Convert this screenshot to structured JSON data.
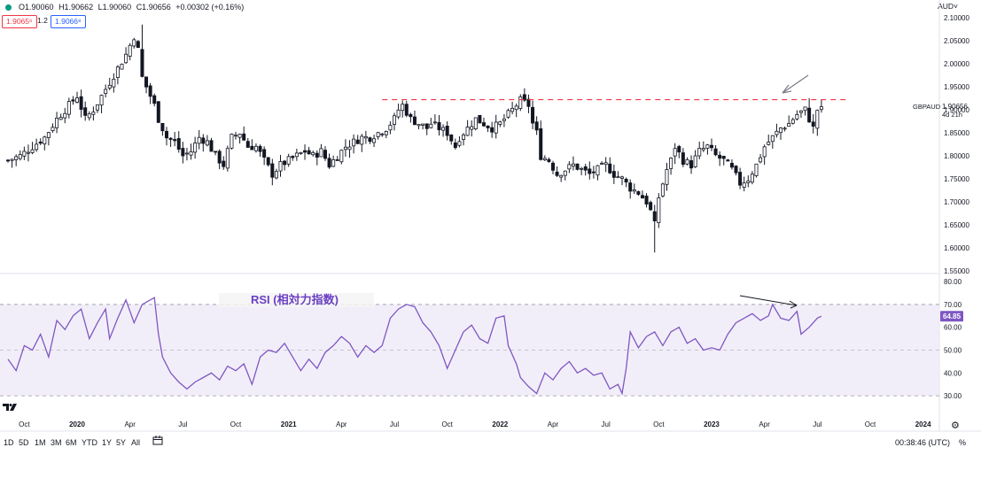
{
  "header": {
    "open": "O1.90060",
    "high": "H1.90662",
    "low": "L1.90060",
    "close": "C1.90656",
    "change": "+0.00302 (+0.16%)",
    "bid": "1.9065⁶",
    "spread": "1.2",
    "ask": "1.9066⁸",
    "currency": "AUD˅"
  },
  "toolbar": {
    "timeframes": [
      "1D",
      "5D",
      "1M",
      "3M",
      "6M",
      "YTD",
      "1Y",
      "5Y",
      "All"
    ],
    "calendar_icon": "calendar-range-icon",
    "clock": "00:38:46 (UTC)",
    "percent": "%",
    "settings_icon": "gear-icon"
  },
  "rsi_label": "RSI (相対力指数)",
  "logo_text": "TV",
  "chart_data": [
    {
      "type": "candlestick",
      "symbol": "GBPAUD",
      "interval": "weekly",
      "last_price": "1.90656",
      "countdown": "4d 21h",
      "ylim": [
        1.55,
        2.1
      ],
      "yticks": [
        "2.10000",
        "2.05000",
        "2.00000",
        "1.95000",
        "1.90000",
        "1.85000",
        "1.80000",
        "1.75000",
        "1.70000",
        "1.65000",
        "1.60000",
        "1.55000"
      ],
      "ytick_values": [
        2.1,
        2.05,
        2.0,
        1.95,
        1.9,
        1.85,
        1.8,
        1.75,
        1.7,
        1.65,
        1.6,
        1.55
      ],
      "xticks": [
        "Oct",
        "2020",
        "Apr",
        "Jul",
        "Oct",
        "2021",
        "Apr",
        "Jul",
        "Oct",
        "2022",
        "Apr",
        "Jul",
        "Oct",
        "2023",
        "Apr",
        "Jul",
        "Oct",
        "2024"
      ],
      "xtick_weeks": [
        4,
        17,
        30,
        43,
        56,
        69,
        82,
        95,
        108,
        121,
        134,
        147,
        160,
        173,
        186,
        199,
        212,
        225
      ],
      "close_path": [
        [
          0,
          1.79
        ],
        [
          3,
          1.8
        ],
        [
          6,
          1.82
        ],
        [
          9,
          1.84
        ],
        [
          12,
          1.88
        ],
        [
          15,
          1.91
        ],
        [
          17,
          1.93
        ],
        [
          19,
          1.88
        ],
        [
          21,
          1.9
        ],
        [
          23,
          1.93
        ],
        [
          25,
          1.96
        ],
        [
          27,
          1.99
        ],
        [
          29,
          2.02
        ],
        [
          31,
          2.06
        ],
        [
          32,
          2.03
        ],
        [
          33,
          1.97
        ],
        [
          34,
          1.95
        ],
        [
          35,
          1.93
        ],
        [
          36,
          1.91
        ],
        [
          37,
          1.88
        ],
        [
          38,
          1.86
        ],
        [
          39,
          1.84
        ],
        [
          41,
          1.83
        ],
        [
          43,
          1.8
        ],
        [
          45,
          1.81
        ],
        [
          47,
          1.84
        ],
        [
          49,
          1.83
        ],
        [
          51,
          1.8
        ],
        [
          53,
          1.78
        ],
        [
          55,
          1.84
        ],
        [
          57,
          1.85
        ],
        [
          59,
          1.82
        ],
        [
          61,
          1.82
        ],
        [
          63,
          1.79
        ],
        [
          65,
          1.76
        ],
        [
          67,
          1.78
        ],
        [
          69,
          1.79
        ],
        [
          71,
          1.8
        ],
        [
          73,
          1.81
        ],
        [
          75,
          1.8
        ],
        [
          77,
          1.81
        ],
        [
          79,
          1.78
        ],
        [
          81,
          1.8
        ],
        [
          83,
          1.82
        ],
        [
          85,
          1.83
        ],
        [
          87,
          1.84
        ],
        [
          89,
          1.84
        ],
        [
          91,
          1.85
        ],
        [
          93,
          1.86
        ],
        [
          95,
          1.88
        ],
        [
          96,
          1.9
        ],
        [
          97,
          1.91
        ],
        [
          99,
          1.88
        ],
        [
          101,
          1.87
        ],
        [
          103,
          1.86
        ],
        [
          104,
          1.87
        ],
        [
          106,
          1.86
        ],
        [
          108,
          1.85
        ],
        [
          110,
          1.82
        ],
        [
          111,
          1.84
        ],
        [
          113,
          1.86
        ],
        [
          115,
          1.88
        ],
        [
          117,
          1.87
        ],
        [
          119,
          1.86
        ],
        [
          121,
          1.87
        ],
        [
          123,
          1.89
        ],
        [
          125,
          1.91
        ],
        [
          126,
          1.92
        ],
        [
          128,
          1.91
        ],
        [
          129,
          1.87
        ],
        [
          130,
          1.85
        ],
        [
          131,
          1.8
        ],
        [
          133,
          1.79
        ],
        [
          135,
          1.76
        ],
        [
          137,
          1.77
        ],
        [
          139,
          1.78
        ],
        [
          141,
          1.77
        ],
        [
          143,
          1.76
        ],
        [
          145,
          1.77
        ],
        [
          147,
          1.78
        ],
        [
          149,
          1.76
        ],
        [
          151,
          1.75
        ],
        [
          153,
          1.73
        ],
        [
          155,
          1.72
        ],
        [
          157,
          1.7
        ],
        [
          158,
          1.68
        ],
        [
          159,
          1.65
        ],
        [
          160,
          1.71
        ],
        [
          162,
          1.77
        ],
        [
          163,
          1.79
        ],
        [
          164,
          1.82
        ],
        [
          166,
          1.79
        ],
        [
          168,
          1.78
        ],
        [
          170,
          1.81
        ],
        [
          172,
          1.82
        ],
        [
          174,
          1.8
        ],
        [
          176,
          1.79
        ],
        [
          178,
          1.77
        ],
        [
          180,
          1.74
        ],
        [
          182,
          1.75
        ],
        [
          184,
          1.78
        ],
        [
          186,
          1.82
        ],
        [
          188,
          1.84
        ],
        [
          190,
          1.86
        ],
        [
          192,
          1.87
        ],
        [
          194,
          1.89
        ],
        [
          196,
          1.9
        ],
        [
          197,
          1.88
        ],
        [
          198,
          1.86
        ],
        [
          199,
          1.9
        ],
        [
          200,
          1.907
        ]
      ],
      "resistance_level": 1.922,
      "annotation_arrow": "down-left pointing to recent high"
    },
    {
      "type": "line",
      "indicator": "RSI",
      "title": "RSI (相対力指数)",
      "last_value": "64.85",
      "ylim": [
        25,
        82
      ],
      "yticks": [
        "80.00",
        "70.00",
        "60.00",
        "50.00",
        "40.00",
        "30.00"
      ],
      "ytick_values": [
        80,
        70,
        60,
        50,
        40,
        30
      ],
      "band": [
        30,
        70
      ],
      "midline": 50,
      "values_path": [
        [
          0,
          46
        ],
        [
          2,
          41
        ],
        [
          4,
          52
        ],
        [
          6,
          50
        ],
        [
          8,
          57
        ],
        [
          10,
          47
        ],
        [
          12,
          63
        ],
        [
          14,
          59
        ],
        [
          16,
          65
        ],
        [
          18,
          68
        ],
        [
          20,
          55
        ],
        [
          22,
          62
        ],
        [
          24,
          68
        ],
        [
          25,
          55
        ],
        [
          27,
          64
        ],
        [
          29,
          72
        ],
        [
          31,
          62
        ],
        [
          33,
          70
        ],
        [
          35,
          72
        ],
        [
          36,
          73
        ],
        [
          37,
          57
        ],
        [
          38,
          47
        ],
        [
          40,
          40
        ],
        [
          42,
          36
        ],
        [
          44,
          33
        ],
        [
          46,
          36
        ],
        [
          48,
          38
        ],
        [
          50,
          40
        ],
        [
          52,
          37
        ],
        [
          54,
          43
        ],
        [
          56,
          41
        ],
        [
          58,
          44
        ],
        [
          60,
          35
        ],
        [
          62,
          47
        ],
        [
          64,
          50
        ],
        [
          66,
          49
        ],
        [
          68,
          53
        ],
        [
          70,
          47
        ],
        [
          72,
          41
        ],
        [
          74,
          46
        ],
        [
          76,
          42
        ],
        [
          78,
          49
        ],
        [
          80,
          52
        ],
        [
          82,
          56
        ],
        [
          84,
          53
        ],
        [
          86,
          47
        ],
        [
          88,
          52
        ],
        [
          90,
          49
        ],
        [
          92,
          52
        ],
        [
          94,
          64
        ],
        [
          96,
          68
        ],
        [
          98,
          70
        ],
        [
          100,
          69
        ],
        [
          102,
          62
        ],
        [
          104,
          58
        ],
        [
          106,
          52
        ],
        [
          108,
          42
        ],
        [
          110,
          50
        ],
        [
          112,
          58
        ],
        [
          114,
          61
        ],
        [
          116,
          55
        ],
        [
          118,
          53
        ],
        [
          120,
          64
        ],
        [
          122,
          65
        ],
        [
          123,
          52
        ],
        [
          125,
          44
        ],
        [
          126,
          38
        ],
        [
          128,
          34
        ],
        [
          130,
          31
        ],
        [
          132,
          40
        ],
        [
          134,
          37
        ],
        [
          136,
          42
        ],
        [
          138,
          45
        ],
        [
          140,
          40
        ],
        [
          142,
          42
        ],
        [
          144,
          39
        ],
        [
          146,
          40
        ],
        [
          148,
          33
        ],
        [
          150,
          35
        ],
        [
          151,
          31
        ],
        [
          152,
          42
        ],
        [
          153,
          58
        ],
        [
          155,
          51
        ],
        [
          157,
          56
        ],
        [
          159,
          58
        ],
        [
          161,
          52
        ],
        [
          163,
          58
        ],
        [
          165,
          60
        ],
        [
          167,
          53
        ],
        [
          169,
          55
        ],
        [
          171,
          50
        ],
        [
          173,
          51
        ],
        [
          175,
          50
        ],
        [
          177,
          57
        ],
        [
          179,
          62
        ],
        [
          181,
          64
        ],
        [
          183,
          66
        ],
        [
          185,
          63
        ],
        [
          187,
          65
        ],
        [
          188,
          70
        ],
        [
          190,
          64
        ],
        [
          192,
          63
        ],
        [
          194,
          67
        ],
        [
          195,
          57
        ],
        [
          197,
          60
        ],
        [
          199,
          64
        ],
        [
          200,
          64.85
        ]
      ],
      "annotation_arrow": "trendline arrow pointing right along RSI highs"
    }
  ],
  "colors": {
    "up": "#089981",
    "down": "#131722",
    "candle": "#131722",
    "resistance": "#f23645",
    "rsi_line": "#7e57c2",
    "rsi_band": "#ede7f6",
    "arrow": "#787b86",
    "rsi_badge": "#7e57c2"
  }
}
